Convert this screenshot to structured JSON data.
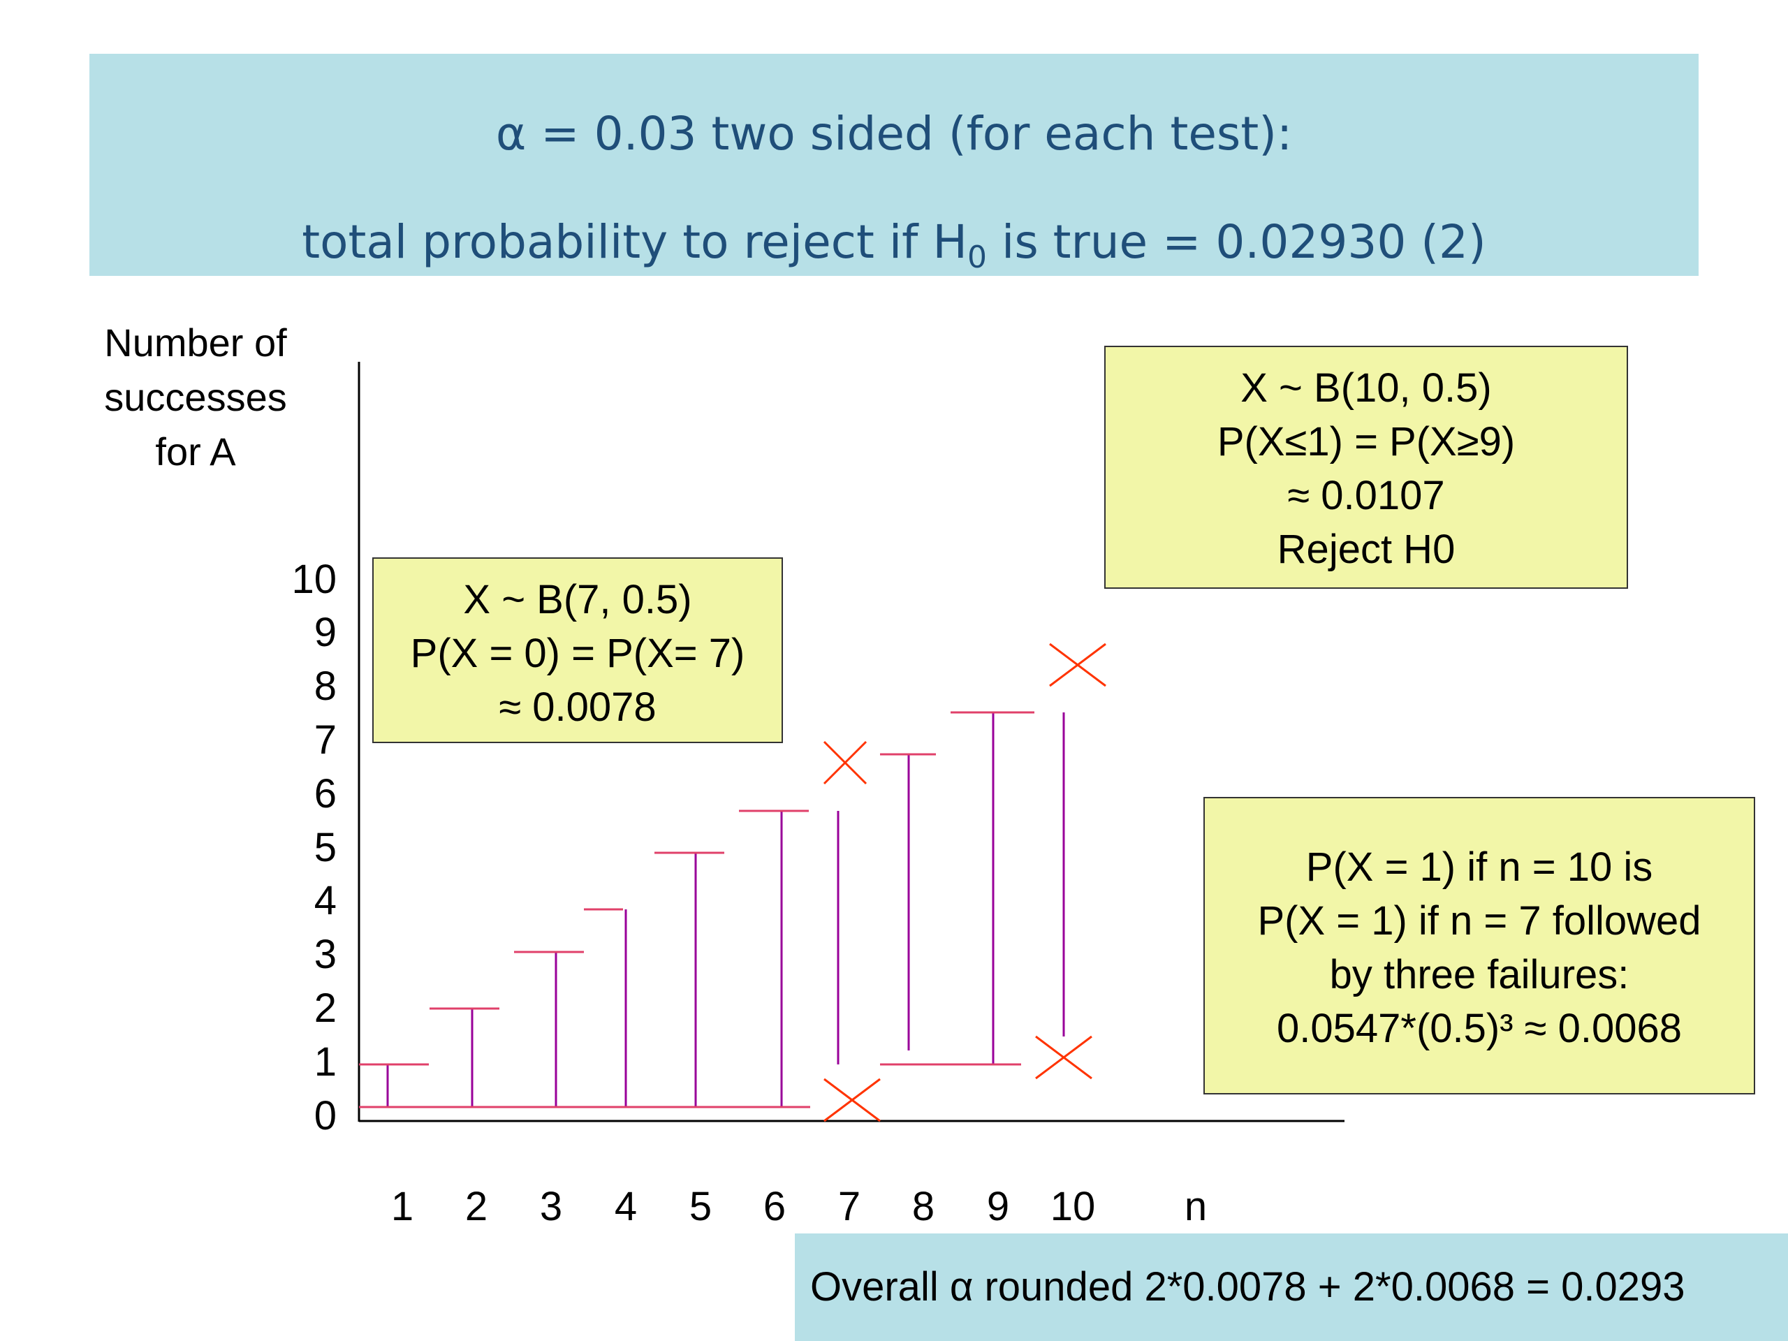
{
  "title": {
    "line1": "α = 0.03 two sided (for each test):",
    "line2_prefix": "total probability to reject if H",
    "line2_sub": "0",
    "line2_suffix": " is true = 0.02930 (2)"
  },
  "axis": {
    "y_label_lines": [
      "Number of",
      "successes",
      "for A"
    ],
    "y_ticks": [
      "10",
      "9",
      "8",
      "7",
      "6",
      "5",
      "4",
      "3",
      "2",
      "1",
      "0"
    ],
    "x_ticks": [
      "1",
      "2",
      "3",
      "4",
      "5",
      "6",
      "7",
      "8",
      "9",
      "10"
    ],
    "x_label": "n"
  },
  "boxes": {
    "b7": [
      "X ~ B(7, 0.5)",
      "P(X = 0) = P(X= 7)",
      "≈ 0.0078"
    ],
    "b10": [
      "X ~ B(10, 0.5)",
      "P(X≤1) = P(X≥9)",
      "≈ 0.0107",
      "Reject H0"
    ],
    "bcond": [
      "P(X = 1) if  n = 10 is",
      "P(X = 1) if n = 7 followed",
      "by three failures:",
      "0.0547*(0.5)³ ≈ 0.0068"
    ]
  },
  "footer": "Overall α rounded 2*0.0078 + 2*0.0068 = 0.0293",
  "colors": {
    "banner_bg": "#b7e0e7",
    "banner_text": "#1f4e79",
    "box_bg": "#f2f6a8",
    "bar_line": "#990099",
    "cap_line": "#e0406a",
    "reject_mark": "#ff3300"
  }
}
